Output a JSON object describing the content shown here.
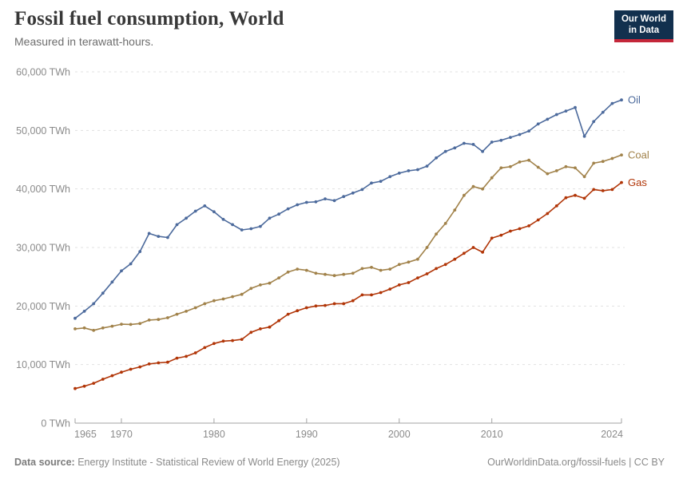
{
  "header": {
    "title": "Fossil fuel consumption, World",
    "subtitle": "Measured in terawatt-hours.",
    "logo_line1": "Our World",
    "logo_line2": "in Data"
  },
  "footer": {
    "source_label": "Data source:",
    "source_text": " Energy Institute - Statistical Review of World Energy (2025)",
    "credit_link": "OurWorldinData.org/fossil-fuels",
    "credit_suffix": " | CC BY"
  },
  "colors": {
    "oil": "#4C6A9C",
    "coal": "#A1824A",
    "gas": "#B13507",
    "gridline": "#e1e1e1",
    "axis": "#a3a3a3",
    "tick_label": "#8b8b8b",
    "logo_bg": "#12304e",
    "logo_accent": "#c4273a"
  },
  "chart_data": {
    "type": "line",
    "title": "Fossil fuel consumption, World",
    "subtitle": "Measured in terawatt-hours.",
    "xlabel": "",
    "ylabel": "TWh",
    "xlim": [
      1965,
      2024
    ],
    "ylim": [
      0,
      60000
    ],
    "yticks": [
      0,
      10000,
      20000,
      30000,
      40000,
      50000,
      60000
    ],
    "ytick_suffix": " TWh",
    "xticks": [
      1965,
      1970,
      1980,
      1990,
      2000,
      2010,
      2024
    ],
    "grid": "horizontal-dashed",
    "legend_position": "line-end-labels",
    "x": [
      1965,
      1966,
      1967,
      1968,
      1969,
      1970,
      1971,
      1972,
      1973,
      1974,
      1975,
      1976,
      1977,
      1978,
      1979,
      1980,
      1981,
      1982,
      1983,
      1984,
      1985,
      1986,
      1987,
      1988,
      1989,
      1990,
      1991,
      1992,
      1993,
      1994,
      1995,
      1996,
      1997,
      1998,
      1999,
      2000,
      2001,
      2002,
      2003,
      2004,
      2005,
      2006,
      2007,
      2008,
      2009,
      2010,
      2011,
      2012,
      2013,
      2014,
      2015,
      2016,
      2017,
      2018,
      2019,
      2020,
      2021,
      2022,
      2023,
      2024
    ],
    "series": [
      {
        "name": "Oil",
        "color": "#4C6A9C",
        "values": [
          17900,
          19100,
          20400,
          22200,
          24100,
          26000,
          27200,
          29300,
          32400,
          31900,
          31700,
          33900,
          35000,
          36200,
          37100,
          36100,
          34800,
          33900,
          33000,
          33200,
          33600,
          35000,
          35700,
          36600,
          37300,
          37700,
          37800,
          38300,
          38000,
          38700,
          39300,
          39900,
          41000,
          41300,
          42100,
          42700,
          43100,
          43300,
          43900,
          45300,
          46400,
          47000,
          47800,
          47600,
          46400,
          48000,
          48300,
          48800,
          49300,
          49900,
          51100,
          51900,
          52700,
          53300,
          53900,
          49000,
          51500,
          53100,
          54600,
          55200
        ]
      },
      {
        "name": "Coal",
        "color": "#A1824A",
        "values": [
          16100,
          16250,
          15850,
          16250,
          16550,
          16900,
          16850,
          17000,
          17600,
          17700,
          18000,
          18600,
          19100,
          19700,
          20400,
          20900,
          21200,
          21600,
          22000,
          23000,
          23600,
          23900,
          24800,
          25800,
          26300,
          26100,
          25600,
          25400,
          25200,
          25400,
          25600,
          26400,
          26600,
          26100,
          26300,
          27100,
          27500,
          28000,
          30000,
          32300,
          34100,
          36400,
          38900,
          40400,
          40000,
          41900,
          43600,
          43800,
          44600,
          44900,
          43700,
          42600,
          43100,
          43800,
          43600,
          42100,
          44400,
          44700,
          45200,
          45800
        ]
      },
      {
        "name": "Gas",
        "color": "#B13507",
        "values": [
          5900,
          6300,
          6800,
          7500,
          8100,
          8700,
          9200,
          9600,
          10100,
          10300,
          10400,
          11100,
          11400,
          12000,
          12900,
          13600,
          14000,
          14100,
          14300,
          15500,
          16100,
          16400,
          17500,
          18600,
          19200,
          19700,
          20000,
          20100,
          20400,
          20400,
          20900,
          21900,
          21900,
          22300,
          22900,
          23600,
          24000,
          24800,
          25500,
          26400,
          27100,
          28000,
          29000,
          30000,
          29200,
          31600,
          32100,
          32800,
          33200,
          33700,
          34700,
          35800,
          37100,
          38500,
          38900,
          38400,
          39900,
          39700,
          39900,
          41100
        ]
      }
    ]
  }
}
